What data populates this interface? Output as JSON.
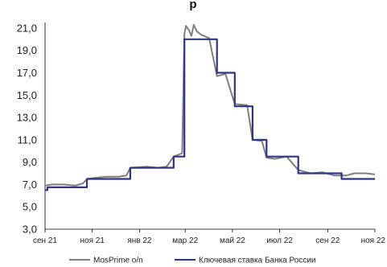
{
  "chart_data": {
    "type": "line",
    "title": "р",
    "xlabel": "",
    "ylabel": "",
    "ylim": [
      3.0,
      21.5
    ],
    "yticks": [
      "3,0",
      "5,0",
      "7,0",
      "9,0",
      "11,0",
      "13,0",
      "15,0",
      "17,0",
      "19,0",
      "21,0"
    ],
    "ytick_values": [
      3,
      5,
      7,
      9,
      11,
      13,
      15,
      17,
      19,
      21
    ],
    "xlim": [
      "2021-09-01",
      "2022-11-01"
    ],
    "xticks": [
      {
        "label": "сен 21",
        "date": "2021-09-01"
      },
      {
        "label": "ноя 21",
        "date": "2021-11-01"
      },
      {
        "label": "янв 22",
        "date": "2022-01-01"
      },
      {
        "label": "мар 22",
        "date": "2022-03-01"
      },
      {
        "label": "май 22",
        "date": "2022-05-01"
      },
      {
        "label": "июл 22",
        "date": "2022-07-01"
      },
      {
        "label": "сен 22",
        "date": "2022-09-01"
      },
      {
        "label": "ноя 22",
        "date": "2022-11-01"
      }
    ],
    "grid": false,
    "legend_position": "bottom",
    "series": [
      {
        "name": "MosPrime o/n",
        "color": "#7f7f7f",
        "step": false,
        "points": [
          [
            "2021-09-01",
            6.9
          ],
          [
            "2021-09-10",
            7.0
          ],
          [
            "2021-09-25",
            7.0
          ],
          [
            "2021-10-10",
            6.9
          ],
          [
            "2021-10-20",
            7.1
          ],
          [
            "2021-10-25",
            7.5
          ],
          [
            "2021-11-05",
            7.6
          ],
          [
            "2021-11-20",
            7.7
          ],
          [
            "2021-12-05",
            7.7
          ],
          [
            "2021-12-15",
            7.8
          ],
          [
            "2021-12-20",
            8.5
          ],
          [
            "2022-01-10",
            8.6
          ],
          [
            "2022-01-25",
            8.5
          ],
          [
            "2022-02-05",
            8.6
          ],
          [
            "2022-02-14",
            9.5
          ],
          [
            "2022-02-25",
            9.8
          ],
          [
            "2022-02-28",
            20.5
          ],
          [
            "2022-03-02",
            21.2
          ],
          [
            "2022-03-06",
            20.8
          ],
          [
            "2022-03-09",
            20.3
          ],
          [
            "2022-03-12",
            21.3
          ],
          [
            "2022-03-16",
            20.7
          ],
          [
            "2022-03-22",
            20.4
          ],
          [
            "2022-04-01",
            20.1
          ],
          [
            "2022-04-11",
            16.7
          ],
          [
            "2022-04-22",
            16.9
          ],
          [
            "2022-05-04",
            14.2
          ],
          [
            "2022-05-20",
            14.1
          ],
          [
            "2022-05-27",
            11.0
          ],
          [
            "2022-06-08",
            10.9
          ],
          [
            "2022-06-14",
            9.4
          ],
          [
            "2022-06-25",
            9.3
          ],
          [
            "2022-07-10",
            9.5
          ],
          [
            "2022-07-25",
            8.3
          ],
          [
            "2022-08-10",
            8.0
          ],
          [
            "2022-08-25",
            8.1
          ],
          [
            "2022-09-10",
            7.8
          ],
          [
            "2022-09-25",
            7.8
          ],
          [
            "2022-10-05",
            8.0
          ],
          [
            "2022-10-20",
            8.0
          ],
          [
            "2022-11-01",
            7.9
          ]
        ]
      },
      {
        "name": "Ключевая ставка Банка России",
        "color": "#2e3586",
        "step": true,
        "points": [
          [
            "2021-09-01",
            6.5
          ],
          [
            "2021-09-04",
            6.75
          ],
          [
            "2021-10-25",
            7.5
          ],
          [
            "2021-12-20",
            8.5
          ],
          [
            "2022-02-14",
            9.5
          ],
          [
            "2022-02-28",
            20.0
          ],
          [
            "2022-04-11",
            17.0
          ],
          [
            "2022-05-04",
            14.0
          ],
          [
            "2022-05-27",
            11.0
          ],
          [
            "2022-06-14",
            9.5
          ],
          [
            "2022-07-25",
            8.0
          ],
          [
            "2022-09-19",
            7.5
          ],
          [
            "2022-11-01",
            7.5
          ]
        ]
      }
    ]
  }
}
